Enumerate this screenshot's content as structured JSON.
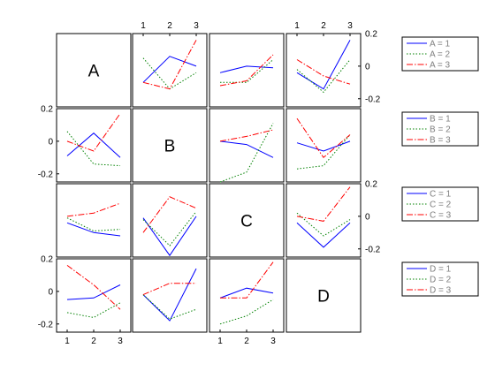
{
  "chart_data": {
    "type": "line",
    "factors": [
      "A",
      "B",
      "C",
      "D"
    ],
    "x": [
      1,
      2,
      3
    ],
    "ylim": [
      -0.25,
      0.2
    ],
    "xticks": [
      1,
      2,
      3
    ],
    "yticks": [
      0.2,
      0,
      -0.2
    ],
    "ytick_labels": [
      "0.2",
      "0",
      "-0.2"
    ],
    "xtick_labels": [
      "1",
      "2",
      "3"
    ],
    "series_styles": [
      {
        "color": "#0000ff",
        "dash": "none"
      },
      {
        "color": "#008000",
        "dash": "dotted"
      },
      {
        "color": "#ff0000",
        "dash": "dashdot"
      }
    ],
    "legends": [
      {
        "factor": "A",
        "entries": [
          "A = 1",
          "A = 2",
          "A = 3"
        ]
      },
      {
        "factor": "B",
        "entries": [
          "B = 1",
          "B = 2",
          "B = 3"
        ]
      },
      {
        "factor": "C",
        "entries": [
          "C = 1",
          "C = 2",
          "C = 3"
        ]
      },
      {
        "factor": "D",
        "entries": [
          "D = 1",
          "D = 2",
          "D = 3"
        ]
      }
    ],
    "panels": [
      {
        "row": 0,
        "col": 1,
        "series": [
          [
            -0.1,
            0.06,
            0.0
          ],
          [
            0.05,
            -0.14,
            -0.04
          ],
          [
            -0.1,
            -0.14,
            0.16
          ]
        ]
      },
      {
        "row": 0,
        "col": 2,
        "series": [
          [
            -0.04,
            0.0,
            -0.01
          ],
          [
            -0.1,
            -0.1,
            0.04
          ],
          [
            -0.12,
            -0.09,
            0.07
          ]
        ]
      },
      {
        "row": 0,
        "col": 3,
        "series": [
          [
            -0.04,
            -0.14,
            0.16
          ],
          [
            -0.02,
            -0.16,
            0.04
          ],
          [
            0.04,
            -0.06,
            -0.11
          ]
        ]
      },
      {
        "row": 1,
        "col": 0,
        "series": [
          [
            -0.09,
            0.05,
            -0.1
          ],
          [
            0.06,
            -0.14,
            -0.15
          ],
          [
            0.0,
            -0.06,
            0.17
          ]
        ]
      },
      {
        "row": 1,
        "col": 2,
        "series": [
          [
            0.0,
            -0.02,
            -0.1
          ],
          [
            -0.25,
            -0.19,
            0.11
          ],
          [
            0.0,
            0.03,
            0.07
          ]
        ]
      },
      {
        "row": 1,
        "col": 3,
        "series": [
          [
            -0.01,
            -0.06,
            0.0
          ],
          [
            -0.17,
            -0.15,
            0.04
          ],
          [
            0.14,
            -0.1,
            0.04
          ]
        ]
      },
      {
        "row": 2,
        "col": 0,
        "series": [
          [
            -0.04,
            -0.1,
            -0.12
          ],
          [
            -0.01,
            -0.09,
            -0.08
          ],
          [
            0.0,
            0.02,
            0.08
          ]
        ]
      },
      {
        "row": 2,
        "col": 1,
        "series": [
          [
            -0.01,
            -0.24,
            0.0
          ],
          [
            -0.02,
            -0.18,
            0.03
          ],
          [
            -0.1,
            0.12,
            0.05
          ]
        ]
      },
      {
        "row": 2,
        "col": 3,
        "series": [
          [
            -0.04,
            -0.19,
            -0.04
          ],
          [
            0.02,
            -0.12,
            -0.02
          ],
          [
            0.0,
            -0.03,
            0.18
          ]
        ]
      },
      {
        "row": 3,
        "col": 0,
        "series": [
          [
            -0.05,
            -0.04,
            0.04
          ],
          [
            -0.13,
            -0.16,
            -0.07
          ],
          [
            0.16,
            0.04,
            -0.11
          ]
        ]
      },
      {
        "row": 3,
        "col": 1,
        "series": [
          [
            -0.02,
            -0.18,
            0.14
          ],
          [
            -0.02,
            -0.17,
            -0.11
          ],
          [
            -0.02,
            0.05,
            0.05
          ]
        ]
      },
      {
        "row": 3,
        "col": 2,
        "series": [
          [
            -0.04,
            0.02,
            -0.01
          ],
          [
            -0.2,
            -0.15,
            -0.05
          ],
          [
            -0.04,
            -0.04,
            0.18
          ]
        ]
      }
    ]
  }
}
